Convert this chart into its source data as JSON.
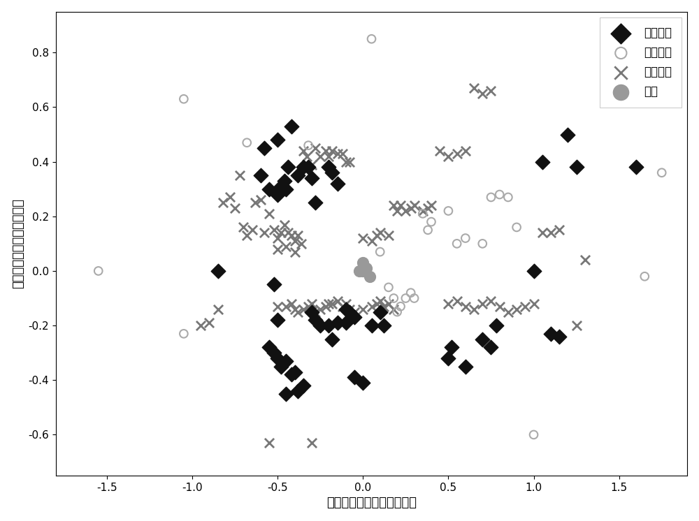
{
  "original_samples": [
    [
      -0.85,
      0.0
    ],
    [
      -0.52,
      -0.05
    ],
    [
      -0.6,
      0.35
    ],
    [
      -0.55,
      0.3
    ],
    [
      -0.58,
      0.45
    ],
    [
      -0.5,
      0.48
    ],
    [
      -0.45,
      0.3
    ],
    [
      -0.5,
      0.28
    ],
    [
      -0.48,
      0.31
    ],
    [
      -0.46,
      0.33
    ],
    [
      -0.44,
      0.38
    ],
    [
      -0.42,
      0.53
    ],
    [
      -0.38,
      0.35
    ],
    [
      -0.35,
      0.38
    ],
    [
      -0.32,
      0.38
    ],
    [
      -0.3,
      0.34
    ],
    [
      -0.28,
      0.25
    ],
    [
      -0.2,
      0.38
    ],
    [
      -0.18,
      0.36
    ],
    [
      -0.15,
      0.32
    ],
    [
      -0.5,
      -0.18
    ],
    [
      -0.55,
      -0.28
    ],
    [
      -0.52,
      -0.3
    ],
    [
      -0.5,
      -0.32
    ],
    [
      -0.48,
      -0.35
    ],
    [
      -0.45,
      -0.33
    ],
    [
      -0.42,
      -0.38
    ],
    [
      -0.4,
      -0.37
    ],
    [
      -0.45,
      -0.45
    ],
    [
      -0.38,
      -0.44
    ],
    [
      -0.35,
      -0.42
    ],
    [
      -0.3,
      -0.15
    ],
    [
      -0.28,
      -0.18
    ],
    [
      -0.25,
      -0.2
    ],
    [
      -0.2,
      -0.2
    ],
    [
      -0.18,
      -0.25
    ],
    [
      -0.15,
      -0.19
    ],
    [
      -0.1,
      -0.14
    ],
    [
      -0.05,
      -0.39
    ],
    [
      0.0,
      -0.41
    ],
    [
      -0.1,
      -0.19
    ],
    [
      -0.08,
      -0.15
    ],
    [
      -0.05,
      -0.17
    ],
    [
      0.05,
      -0.2
    ],
    [
      0.1,
      -0.15
    ],
    [
      0.12,
      -0.2
    ],
    [
      0.5,
      -0.32
    ],
    [
      0.52,
      -0.28
    ],
    [
      0.6,
      -0.35
    ],
    [
      0.7,
      -0.25
    ],
    [
      0.75,
      -0.28
    ],
    [
      0.78,
      -0.2
    ],
    [
      1.0,
      0.0
    ],
    [
      1.05,
      0.4
    ],
    [
      1.1,
      -0.23
    ],
    [
      1.15,
      -0.24
    ],
    [
      1.2,
      0.5
    ],
    [
      1.25,
      0.38
    ],
    [
      1.6,
      0.38
    ]
  ],
  "generated_samples": [
    [
      -1.55,
      0.0
    ],
    [
      -1.05,
      0.63
    ],
    [
      -1.05,
      -0.23
    ],
    [
      -0.68,
      0.47
    ],
    [
      -0.32,
      0.46
    ],
    [
      0.05,
      0.85
    ],
    [
      0.1,
      0.07
    ],
    [
      0.15,
      -0.06
    ],
    [
      0.18,
      -0.1
    ],
    [
      0.2,
      -0.15
    ],
    [
      0.22,
      -0.13
    ],
    [
      0.25,
      -0.1
    ],
    [
      0.28,
      -0.08
    ],
    [
      0.3,
      -0.1
    ],
    [
      0.35,
      0.21
    ],
    [
      0.38,
      0.15
    ],
    [
      0.4,
      0.18
    ],
    [
      0.5,
      0.22
    ],
    [
      0.55,
      0.1
    ],
    [
      0.6,
      0.12
    ],
    [
      0.7,
      0.1
    ],
    [
      0.75,
      0.27
    ],
    [
      0.8,
      0.28
    ],
    [
      0.85,
      0.27
    ],
    [
      0.9,
      0.16
    ],
    [
      1.0,
      -0.6
    ],
    [
      1.65,
      -0.02
    ],
    [
      1.75,
      0.36
    ]
  ],
  "qualified_samples": [
    [
      -0.95,
      -0.2
    ],
    [
      -0.9,
      -0.19
    ],
    [
      -0.85,
      -0.14
    ],
    [
      -0.82,
      0.25
    ],
    [
      -0.78,
      0.27
    ],
    [
      -0.75,
      0.23
    ],
    [
      -0.72,
      0.35
    ],
    [
      -0.7,
      0.16
    ],
    [
      -0.68,
      0.13
    ],
    [
      -0.65,
      0.15
    ],
    [
      -0.63,
      0.25
    ],
    [
      -0.6,
      0.26
    ],
    [
      -0.58,
      0.14
    ],
    [
      -0.55,
      0.21
    ],
    [
      -0.52,
      0.15
    ],
    [
      -0.5,
      0.12
    ],
    [
      -0.48,
      0.14
    ],
    [
      -0.46,
      0.17
    ],
    [
      -0.44,
      0.14
    ],
    [
      -0.42,
      0.13
    ],
    [
      -0.4,
      0.11
    ],
    [
      -0.38,
      0.13
    ],
    [
      -0.36,
      0.1
    ],
    [
      -0.35,
      0.44
    ],
    [
      -0.33,
      0.42
    ],
    [
      -0.3,
      0.39
    ],
    [
      -0.28,
      0.45
    ],
    [
      -0.25,
      0.42
    ],
    [
      -0.22,
      0.44
    ],
    [
      -0.2,
      0.42
    ],
    [
      -0.18,
      0.44
    ],
    [
      -0.15,
      0.43
    ],
    [
      -0.12,
      0.43
    ],
    [
      -0.1,
      0.4
    ],
    [
      -0.08,
      0.4
    ],
    [
      -0.5,
      -0.13
    ],
    [
      -0.45,
      -0.13
    ],
    [
      -0.42,
      -0.12
    ],
    [
      -0.4,
      -0.14
    ],
    [
      -0.38,
      -0.15
    ],
    [
      -0.35,
      -0.14
    ],
    [
      -0.32,
      -0.13
    ],
    [
      -0.3,
      -0.12
    ],
    [
      -0.28,
      -0.15
    ],
    [
      -0.25,
      -0.14
    ],
    [
      -0.22,
      -0.13
    ],
    [
      -0.2,
      -0.12
    ],
    [
      -0.18,
      -0.12
    ],
    [
      -0.15,
      -0.11
    ],
    [
      -0.12,
      -0.13
    ],
    [
      -0.1,
      -0.12
    ],
    [
      -0.08,
      -0.14
    ],
    [
      -0.05,
      -0.15
    ],
    [
      0.0,
      -0.14
    ],
    [
      0.05,
      -0.13
    ],
    [
      0.08,
      -0.12
    ],
    [
      0.1,
      -0.11
    ],
    [
      0.12,
      -0.13
    ],
    [
      0.15,
      -0.12
    ],
    [
      0.18,
      -0.14
    ],
    [
      -0.55,
      -0.63
    ],
    [
      -0.3,
      -0.63
    ],
    [
      -0.5,
      0.08
    ],
    [
      -0.45,
      0.09
    ],
    [
      -0.4,
      0.07
    ],
    [
      0.0,
      0.12
    ],
    [
      0.05,
      0.11
    ],
    [
      0.08,
      0.13
    ],
    [
      0.1,
      0.14
    ],
    [
      0.15,
      0.13
    ],
    [
      0.18,
      0.24
    ],
    [
      0.2,
      0.22
    ],
    [
      0.22,
      0.24
    ],
    [
      0.25,
      0.22
    ],
    [
      0.28,
      0.23
    ],
    [
      0.3,
      0.24
    ],
    [
      0.35,
      0.22
    ],
    [
      0.38,
      0.23
    ],
    [
      0.4,
      0.24
    ],
    [
      0.45,
      0.44
    ],
    [
      0.5,
      0.42
    ],
    [
      0.55,
      0.43
    ],
    [
      0.6,
      0.44
    ],
    [
      0.65,
      0.67
    ],
    [
      0.7,
      0.65
    ],
    [
      0.75,
      0.66
    ],
    [
      0.5,
      -0.12
    ],
    [
      0.55,
      -0.11
    ],
    [
      0.6,
      -0.13
    ],
    [
      0.65,
      -0.14
    ],
    [
      0.7,
      -0.12
    ],
    [
      0.75,
      -0.11
    ],
    [
      0.8,
      -0.13
    ],
    [
      0.85,
      -0.15
    ],
    [
      0.9,
      -0.14
    ],
    [
      0.95,
      -0.13
    ],
    [
      1.0,
      -0.12
    ],
    [
      1.05,
      0.14
    ],
    [
      1.1,
      0.14
    ],
    [
      1.15,
      0.15
    ],
    [
      1.25,
      -0.2
    ],
    [
      1.3,
      0.04
    ]
  ],
  "centroids": [
    [
      0.02,
      0.01
    ],
    [
      0.04,
      -0.02
    ],
    [
      0.0,
      0.03
    ],
    [
      -0.02,
      0.0
    ],
    [
      0.0,
      0.0
    ]
  ],
  "xlabel": "输入变量主成分的第一维度",
  "ylabel": "输入变量主成分的第二维度",
  "legend_labels": [
    "原始样本",
    "生成样本",
    "合格样本",
    "形心"
  ],
  "xlim": [
    -1.8,
    1.9
  ],
  "ylim": [
    -0.75,
    0.95
  ],
  "original_color": "#111111",
  "generated_color": "#aaaaaa",
  "qualified_color": "#777777",
  "centroid_color": "#999999",
  "background_color": "#ffffff"
}
